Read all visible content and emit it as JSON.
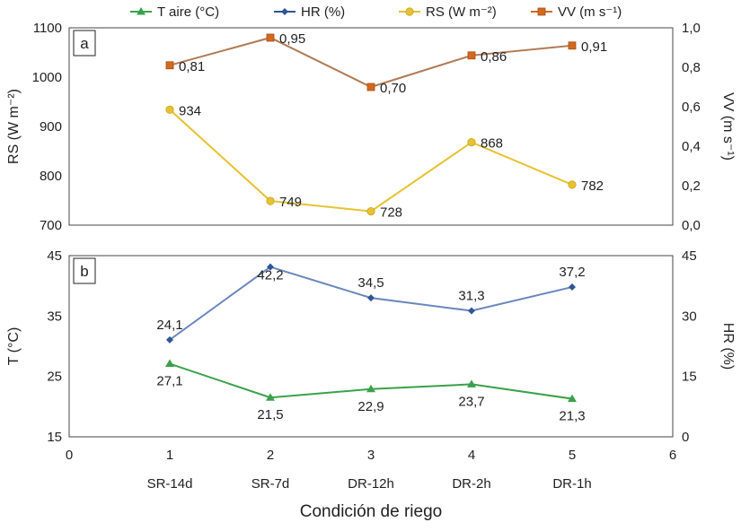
{
  "legend": [
    {
      "name": "T aire (°C)",
      "color": "#3aa14a",
      "marker": "triangle"
    },
    {
      "name": "HR (%)",
      "color": "#2f5597",
      "marker": "diamond"
    },
    {
      "name": "RS (W m⁻²)",
      "color": "#e6c233",
      "marker": "circle"
    },
    {
      "name": "VV (m s⁻¹)",
      "color": "#d2691e",
      "marker": "square"
    }
  ],
  "chart_data": [
    {
      "type": "line",
      "panel_label": "a",
      "x": [
        1,
        2,
        3,
        4,
        5
      ],
      "y_left": {
        "label": "RS (W m⁻²)",
        "range": [
          700,
          1100
        ],
        "ticks": [
          700,
          800,
          900,
          1000,
          1100
        ]
      },
      "y_right": {
        "label": "VV (m s⁻¹)",
        "range": [
          0,
          1.0
        ],
        "ticks": [
          "0,0",
          "0,2",
          "0,4",
          "0,6",
          "0,8",
          "1,0"
        ]
      },
      "series": [
        {
          "name": "RS",
          "axis": "left",
          "color": "#e6c233",
          "marker": "circle",
          "values": [
            934,
            749,
            728,
            868,
            782
          ],
          "labels": [
            "934",
            "749",
            "728",
            "868",
            "782"
          ]
        },
        {
          "name": "VV",
          "axis": "right",
          "color": "#d2691e",
          "marker": "square",
          "line_color": "#b07a55",
          "values": [
            0.81,
            0.95,
            0.7,
            0.86,
            0.91
          ],
          "labels": [
            "0,81",
            "0,95",
            "0,70",
            "0,86",
            "0,91"
          ]
        }
      ]
    },
    {
      "type": "line",
      "panel_label": "b",
      "x": [
        1,
        2,
        3,
        4,
        5
      ],
      "x_range": [
        0,
        6
      ],
      "x_ticks": [
        "0",
        "1",
        "2",
        "3",
        "4",
        "5",
        "6"
      ],
      "categories": [
        "SR-14d",
        "SR-7d",
        "DR-12h",
        "DR-2h",
        "DR-1h"
      ],
      "xlabel": "Condición de riego",
      "y_left": {
        "label": "T (°C)",
        "range": [
          15,
          45
        ],
        "ticks": [
          15,
          25,
          35,
          45
        ]
      },
      "y_right": {
        "label": "HR (%)",
        "range": [
          0,
          45
        ],
        "ticks": [
          0,
          15,
          30,
          45
        ]
      },
      "series": [
        {
          "name": "HR",
          "axis": "right",
          "color": "#2f5597",
          "marker": "diamond",
          "line_color": "#6a86bd",
          "values": [
            24.1,
            42.2,
            34.5,
            31.3,
            37.2
          ],
          "labels": [
            "24,1",
            "42,2",
            "34,5",
            "31,3",
            "37,2"
          ]
        },
        {
          "name": "T aire",
          "axis": "left",
          "color": "#3aa14a",
          "marker": "triangle",
          "values": [
            27.1,
            21.5,
            22.9,
            23.7,
            21.3
          ],
          "labels": [
            "27,1",
            "21,5",
            "22,9",
            "23,7",
            "21,3"
          ]
        }
      ]
    }
  ]
}
